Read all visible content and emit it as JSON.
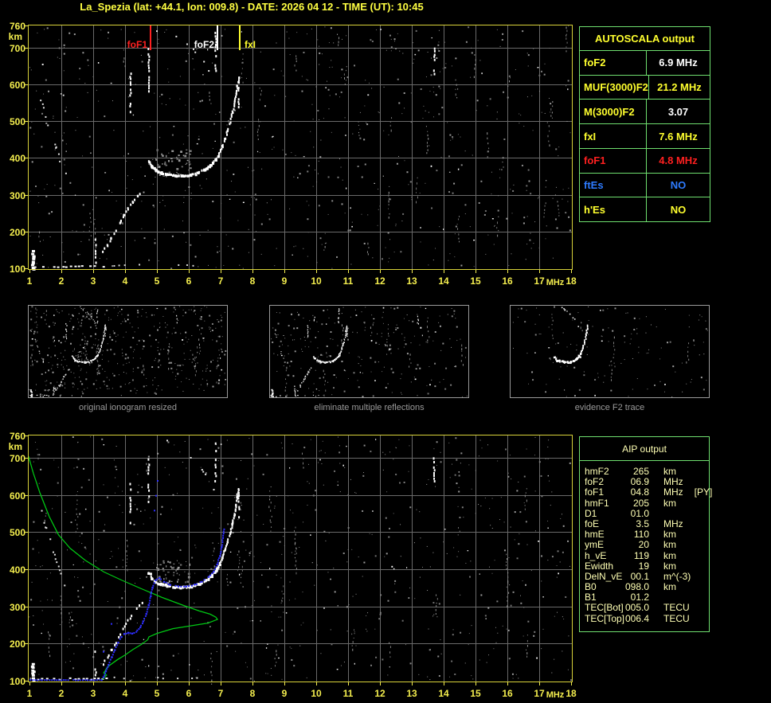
{
  "title": "La_Spezia (lat: +44.1, lon: 009.8) - DATE: 2026 04 12 - TIME (UT): 10:45",
  "colors": {
    "background": "#000000",
    "title_yellow": "#ffff42",
    "axis_yellow": "#f4ee4e",
    "plot_border": "#d8d23a",
    "grid": "#6a6a6a",
    "table_green": "#6fdf6f",
    "label_yellow": "#ffff2e",
    "value_white": "#ffffff",
    "alert_red": "#ff2020",
    "es_blue": "#2e7bff",
    "aip_pale": "#ffffb4",
    "caption_gray": "#9a9a9a",
    "profile_green": "#00c814",
    "restored_blue": "#2e2eff",
    "echo_white": "#ffffff"
  },
  "autoscala": {
    "title": "AUTOSCALA output",
    "rows": [
      {
        "label": "foF2",
        "value": "6.9 MHz",
        "label_color": "#ffff2e",
        "value_color": "#ffffff"
      },
      {
        "label": "MUF(3000)F2",
        "value": "21.2 MHz",
        "label_color": "#ffff2e",
        "value_color": "#ffff2e"
      },
      {
        "label": "M(3000)F2",
        "value": "3.07",
        "label_color": "#ffff2e",
        "value_color": "#ffffff"
      },
      {
        "label": "fxI",
        "value": "7.6 MHz",
        "label_color": "#ffff2e",
        "value_color": "#ffff2e"
      },
      {
        "label": "foF1",
        "value": "4.8 MHz",
        "label_color": "#ff2020",
        "value_color": "#ff2020"
      },
      {
        "label": "ftEs",
        "value": "NO",
        "label_color": "#2e7bff",
        "value_color": "#2e7bff"
      },
      {
        "label": "h'Es",
        "value": "NO",
        "label_color": "#ffff2e",
        "value_color": "#ffff2e"
      }
    ]
  },
  "aip": {
    "title": "AIP output",
    "rows": [
      {
        "param": "hmF2",
        "value": "265",
        "unit": "km",
        "note": ""
      },
      {
        "param": "foF2",
        "value": "06.9",
        "unit": "MHz",
        "note": ""
      },
      {
        "param": "foF1",
        "value": "04.8",
        "unit": "MHz",
        "note": "[PY]"
      },
      {
        "param": "hmF1",
        "value": "205",
        "unit": "km",
        "note": ""
      },
      {
        "param": "D1",
        "value": "01.0",
        "unit": "",
        "note": ""
      },
      {
        "param": "foE",
        "value": "3.5",
        "unit": "MHz",
        "note": ""
      },
      {
        "param": "hmE",
        "value": "110",
        "unit": "km",
        "note": ""
      },
      {
        "param": "ymE",
        "value": "20",
        "unit": "km",
        "note": ""
      },
      {
        "param": "h_vE",
        "value": "119",
        "unit": "km",
        "note": ""
      },
      {
        "param": "Ewidth",
        "value": "19",
        "unit": "km",
        "note": ""
      },
      {
        "param": "DelN_vE",
        "value": "00.1",
        "unit": "m^(-3)",
        "note": ""
      },
      {
        "param": "B0",
        "value": "098.0",
        "unit": "km",
        "note": ""
      },
      {
        "param": "B1",
        "value": "01.2",
        "unit": "",
        "note": ""
      },
      {
        "param": "TEC[Bot]",
        "value": "005.0",
        "unit": "TECU",
        "note": ""
      },
      {
        "param": "TEC[Top]",
        "value": "006.4",
        "unit": "TECU",
        "note": ""
      }
    ]
  },
  "thumbnails": [
    {
      "caption": "original ionogram resized"
    },
    {
      "caption": "eliminate multiple reflections"
    },
    {
      "caption": "evidence F2 trace"
    }
  ],
  "markers": [
    {
      "label": "foF1",
      "freq": 4.8,
      "color": "#ff2020",
      "side": "left"
    },
    {
      "label": "foF2",
      "freq": 6.9,
      "color": "#ffffff",
      "side": "left"
    },
    {
      "label": "fxI",
      "freq": 7.6,
      "color": "#ffff2e",
      "side": "right"
    }
  ],
  "chart_data": {
    "type": "scatter",
    "description": "Vertical-incidence ionogram echoes (virtual height vs frequency), shown twice: raw autoscaled (top) and with restored trace + electron density profile (bottom)",
    "x_label": "MHz",
    "y_label": "km",
    "x_range": [
      1,
      18
    ],
    "y_range": [
      100,
      760
    ],
    "x_ticks": [
      1,
      2,
      3,
      4,
      5,
      6,
      7,
      8,
      9,
      10,
      11,
      12,
      13,
      14,
      15,
      16,
      17,
      18
    ],
    "y_ticks": [
      100,
      200,
      300,
      400,
      500,
      600,
      700,
      760
    ],
    "f2_trace": [
      [
        4.72,
        393
      ],
      [
        4.82,
        378
      ],
      [
        4.95,
        368
      ],
      [
        5.1,
        362
      ],
      [
        5.3,
        358
      ],
      [
        5.55,
        354
      ],
      [
        5.8,
        354
      ],
      [
        6.05,
        356
      ],
      [
        6.3,
        363
      ],
      [
        6.5,
        372
      ],
      [
        6.68,
        384
      ],
      [
        6.82,
        398
      ],
      [
        6.93,
        415
      ],
      [
        7.03,
        434
      ],
      [
        7.12,
        455
      ],
      [
        7.2,
        477
      ],
      [
        7.28,
        500
      ],
      [
        7.35,
        525
      ],
      [
        7.41,
        550
      ],
      [
        7.46,
        575
      ],
      [
        7.5,
        598
      ],
      [
        7.54,
        620
      ]
    ],
    "f1_trace": [
      [
        3.28,
        148
      ],
      [
        3.42,
        165
      ],
      [
        3.55,
        185
      ],
      [
        3.68,
        205
      ],
      [
        3.82,
        227
      ],
      [
        3.95,
        248
      ],
      [
        4.08,
        265
      ],
      [
        4.22,
        283
      ],
      [
        4.36,
        298
      ],
      [
        4.5,
        312
      ]
    ],
    "e_trace": [
      [
        1.0,
        107
      ],
      [
        3.4,
        107
      ]
    ],
    "e_trace_ext": [
      [
        3.5,
        110
      ],
      [
        6.4,
        110
      ]
    ],
    "left_multiples": [
      [
        1.35,
        560
      ],
      [
        1.5,
        515
      ],
      [
        1.65,
        470
      ],
      [
        1.8,
        430
      ],
      [
        1.95,
        392
      ],
      [
        2.1,
        360
      ]
    ],
    "f2_second_hop": [
      [
        5.3,
        750
      ],
      [
        5.6,
        733
      ],
      [
        5.9,
        713
      ],
      [
        6.2,
        690
      ],
      [
        6.45,
        665
      ],
      [
        6.62,
        640
      ],
      [
        6.75,
        615
      ],
      [
        6.83,
        595
      ]
    ],
    "echo_streaks": [
      [
        3.05,
        118,
        182
      ],
      [
        4.15,
        528,
        632
      ],
      [
        4.72,
        585,
        700
      ],
      [
        6.82,
        640,
        742
      ],
      [
        7.55,
        542,
        622
      ],
      [
        13.68,
        632,
        700
      ]
    ],
    "corner_blob": [
      1.07,
      100,
      148
    ],
    "gray_cluster": {
      "f": [
        4.95,
        6.05
      ],
      "km": [
        352,
        425
      ]
    },
    "profile_green": [
      [
        0.97,
        704
      ],
      [
        1.12,
        659
      ],
      [
        1.33,
        605
      ],
      [
        1.62,
        542
      ],
      [
        1.91,
        493
      ],
      [
        2.28,
        456
      ],
      [
        2.75,
        424
      ],
      [
        3.33,
        393
      ],
      [
        3.91,
        370
      ],
      [
        4.5,
        348
      ],
      [
        5.16,
        324
      ],
      [
        5.83,
        303
      ],
      [
        6.33,
        288
      ],
      [
        6.67,
        279
      ],
      [
        6.85,
        271
      ],
      [
        6.9,
        265
      ],
      [
        6.6,
        255
      ],
      [
        6.17,
        249
      ],
      [
        5.5,
        240
      ],
      [
        5.0,
        227
      ],
      [
        4.75,
        218
      ],
      [
        4.71,
        210
      ],
      [
        4.5,
        197
      ],
      [
        4.25,
        184
      ],
      [
        4.0,
        169
      ],
      [
        3.75,
        156
      ],
      [
        3.54,
        143
      ],
      [
        3.42,
        134
      ],
      [
        3.38,
        127
      ],
      [
        3.33,
        121
      ],
      [
        3.42,
        115
      ],
      [
        3.35,
        109
      ],
      [
        3.29,
        103
      ]
    ],
    "restored_trace": [
      [
        1.0,
        104
      ],
      [
        3.25,
        104
      ],
      [
        3.3,
        112
      ],
      [
        3.38,
        128
      ],
      [
        3.46,
        145
      ],
      [
        3.56,
        165
      ],
      [
        3.66,
        185
      ],
      [
        3.76,
        205
      ],
      [
        3.86,
        220
      ],
      [
        3.95,
        228
      ],
      [
        4.08,
        231
      ],
      [
        4.2,
        229
      ],
      [
        4.32,
        233
      ],
      [
        4.45,
        245
      ],
      [
        4.55,
        262
      ],
      [
        4.65,
        282
      ],
      [
        4.72,
        305
      ],
      [
        4.78,
        330
      ],
      [
        4.84,
        352
      ],
      [
        4.92,
        372
      ],
      [
        5.05,
        378
      ],
      [
        5.2,
        368
      ],
      [
        5.4,
        360
      ],
      [
        5.65,
        356
      ],
      [
        5.9,
        356
      ],
      [
        6.15,
        360
      ],
      [
        6.4,
        369
      ],
      [
        6.6,
        381
      ],
      [
        6.75,
        396
      ],
      [
        6.87,
        415
      ],
      [
        6.95,
        438
      ],
      [
        7.01,
        462
      ],
      [
        7.05,
        487
      ],
      [
        7.08,
        510
      ]
    ],
    "restored_extra": [
      [
        3.55,
        255
      ],
      [
        4.9,
        560
      ],
      [
        4.95,
        600
      ],
      [
        5.0,
        640
      ],
      [
        3.3,
        180
      ]
    ]
  }
}
